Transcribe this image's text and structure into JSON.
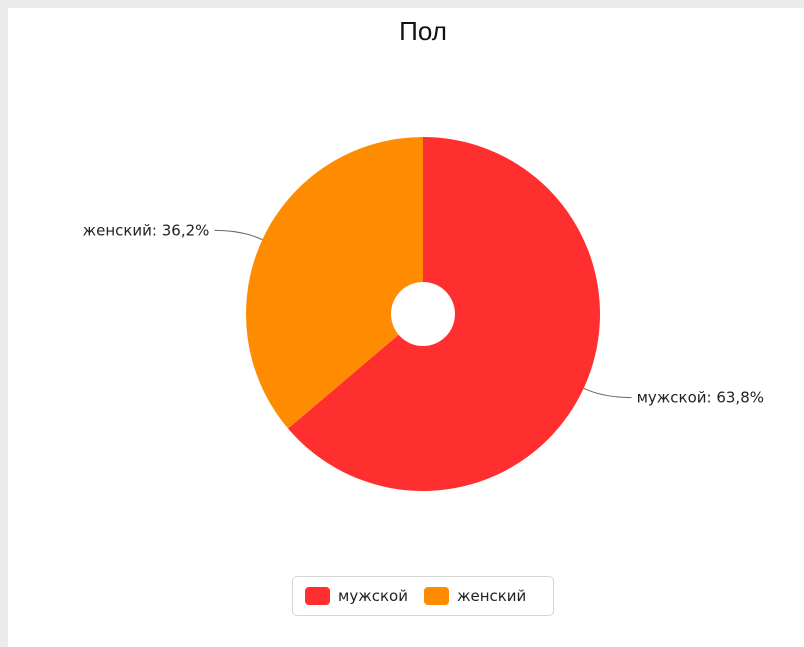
{
  "chart_data": {
    "type": "pie",
    "title": "Пол",
    "donut": true,
    "start_angle_deg": 0,
    "direction": "clockwise",
    "categories": [
      "мужской",
      "женский"
    ],
    "values": [
      63.8,
      36.2
    ],
    "data_labels": [
      "мужской: 63,8%",
      "женский: 36,2%"
    ],
    "colors": [
      "#ff2f2f",
      "#ff8c00"
    ],
    "legend": {
      "placement": "bottom-center",
      "entries": [
        "мужской",
        "женский"
      ]
    }
  }
}
